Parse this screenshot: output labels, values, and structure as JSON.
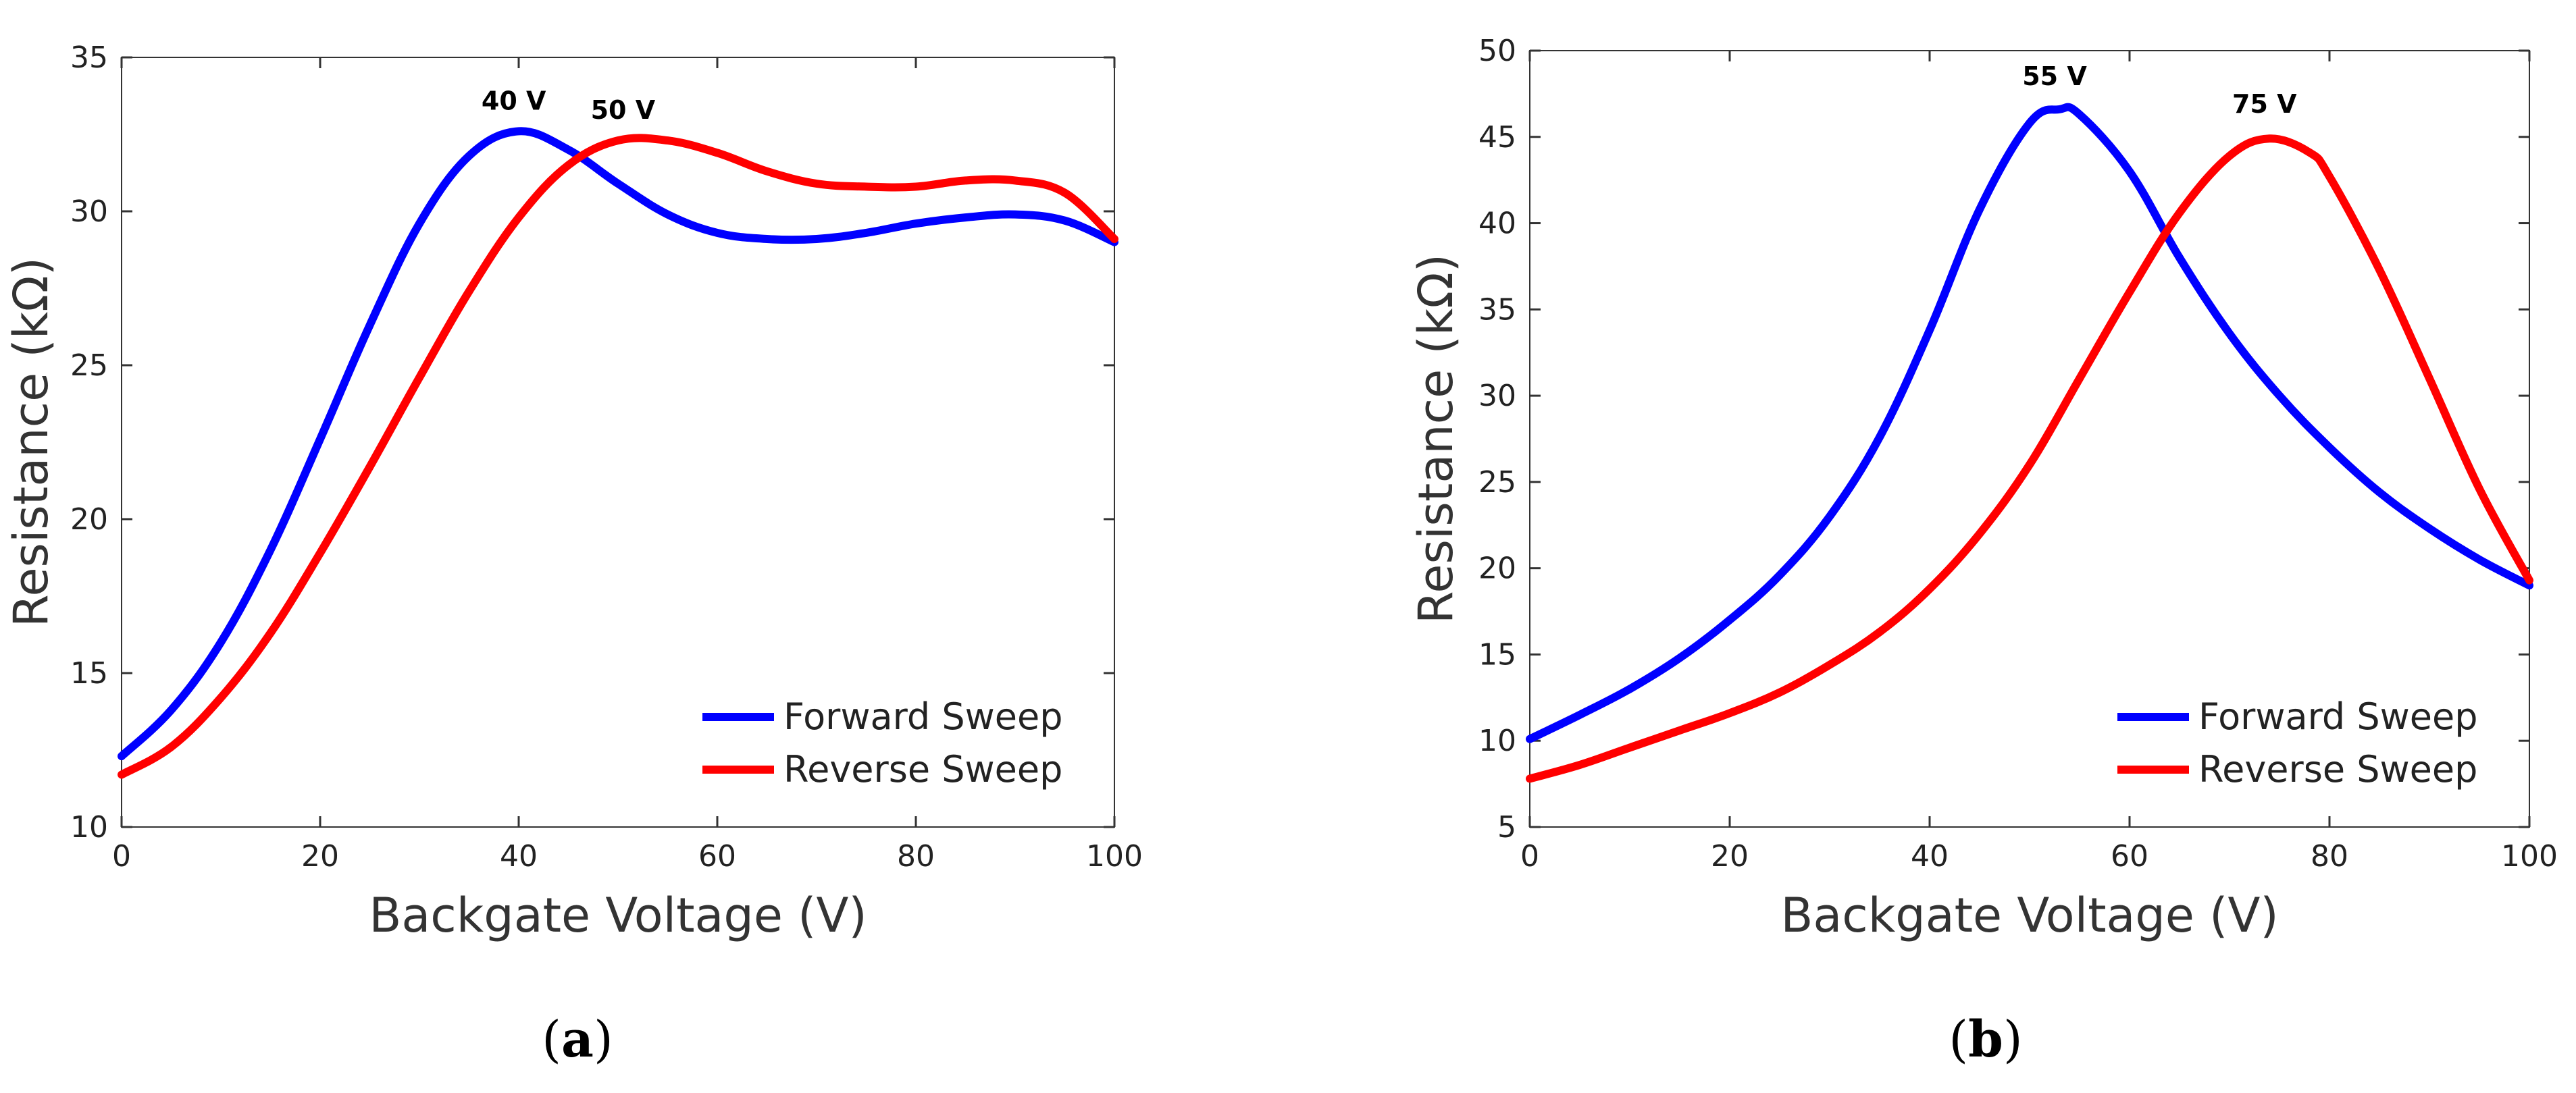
{
  "chart_data": [
    {
      "type": "line",
      "panel_label": "a",
      "title": "",
      "xlabel": "Backgate Voltage (V)",
      "ylabel": "Resistance (kΩ)",
      "xlim": [
        0,
        100
      ],
      "ylim": [
        10,
        35
      ],
      "xticks": [
        0,
        20,
        40,
        60,
        80,
        100
      ],
      "yticks": [
        10,
        15,
        20,
        25,
        30,
        35
      ],
      "grid": false,
      "legend_position": "bottom-right",
      "series": [
        {
          "name": "Forward Sweep",
          "color": "#0000ff",
          "x": [
            0,
            5,
            10,
            15,
            20,
            25,
            30,
            35,
            40,
            45,
            50,
            55,
            60,
            65,
            70,
            75,
            80,
            85,
            90,
            95,
            100
          ],
          "y": [
            12.3,
            13.8,
            16.0,
            19.0,
            22.6,
            26.3,
            29.6,
            31.8,
            32.6,
            32.0,
            30.9,
            29.9,
            29.3,
            29.1,
            29.1,
            29.3,
            29.6,
            29.8,
            29.9,
            29.7,
            29.0
          ]
        },
        {
          "name": "Reverse Sweep",
          "color": "#ff0000",
          "x": [
            0,
            5,
            10,
            15,
            20,
            25,
            30,
            35,
            40,
            45,
            50,
            55,
            60,
            65,
            70,
            75,
            80,
            85,
            90,
            95,
            100
          ],
          "y": [
            11.7,
            12.6,
            14.2,
            16.3,
            18.9,
            21.7,
            24.6,
            27.4,
            29.8,
            31.5,
            32.3,
            32.3,
            31.9,
            31.3,
            30.9,
            30.8,
            30.8,
            31.0,
            31.0,
            30.6,
            29.1
          ]
        }
      ],
      "annotations": [
        {
          "text": "40 V",
          "x": 39.5,
          "y": 33.3
        },
        {
          "text": "50 V",
          "x": 50.5,
          "y": 33.0
        }
      ]
    },
    {
      "type": "line",
      "panel_label": "b",
      "title": "",
      "xlabel": "Backgate Voltage (V)",
      "ylabel": "Resistance (kΩ)",
      "xlim": [
        0,
        100
      ],
      "ylim": [
        5,
        50
      ],
      "xticks": [
        0,
        20,
        40,
        60,
        80,
        100
      ],
      "yticks": [
        5,
        10,
        15,
        20,
        25,
        30,
        35,
        40,
        45,
        50
      ],
      "grid": false,
      "legend_position": "bottom-right",
      "series": [
        {
          "name": "Forward Sweep",
          "color": "#0000ff",
          "x": [
            0,
            5,
            10,
            15,
            20,
            25,
            30,
            35,
            40,
            45,
            50,
            53,
            55,
            60,
            65,
            70,
            75,
            80,
            85,
            90,
            95,
            100
          ],
          "y": [
            10.1,
            11.5,
            13.0,
            14.8,
            17.0,
            19.6,
            23.0,
            27.6,
            33.8,
            40.8,
            45.8,
            46.6,
            46.3,
            43.0,
            38.0,
            33.6,
            30.0,
            27.0,
            24.4,
            22.3,
            20.5,
            19.0
          ],
          "peak_x": 53
        },
        {
          "name": "Reverse Sweep",
          "color": "#ff0000",
          "x": [
            0,
            5,
            10,
            15,
            20,
            25,
            30,
            35,
            40,
            45,
            50,
            55,
            60,
            65,
            70,
            74,
            78,
            80,
            85,
            90,
            95,
            100
          ],
          "y": [
            7.8,
            8.6,
            9.6,
            10.6,
            11.6,
            12.8,
            14.4,
            16.3,
            18.8,
            22.0,
            26.0,
            31.0,
            36.0,
            40.6,
            43.9,
            44.9,
            44.1,
            42.7,
            37.3,
            31.0,
            24.6,
            19.3
          ],
          "peak_x": 74
        }
      ],
      "annotations": [
        {
          "text": "55 V",
          "x": 52.5,
          "y": 48.0
        },
        {
          "text": "75 V",
          "x": 73.5,
          "y": 46.4
        }
      ]
    }
  ]
}
